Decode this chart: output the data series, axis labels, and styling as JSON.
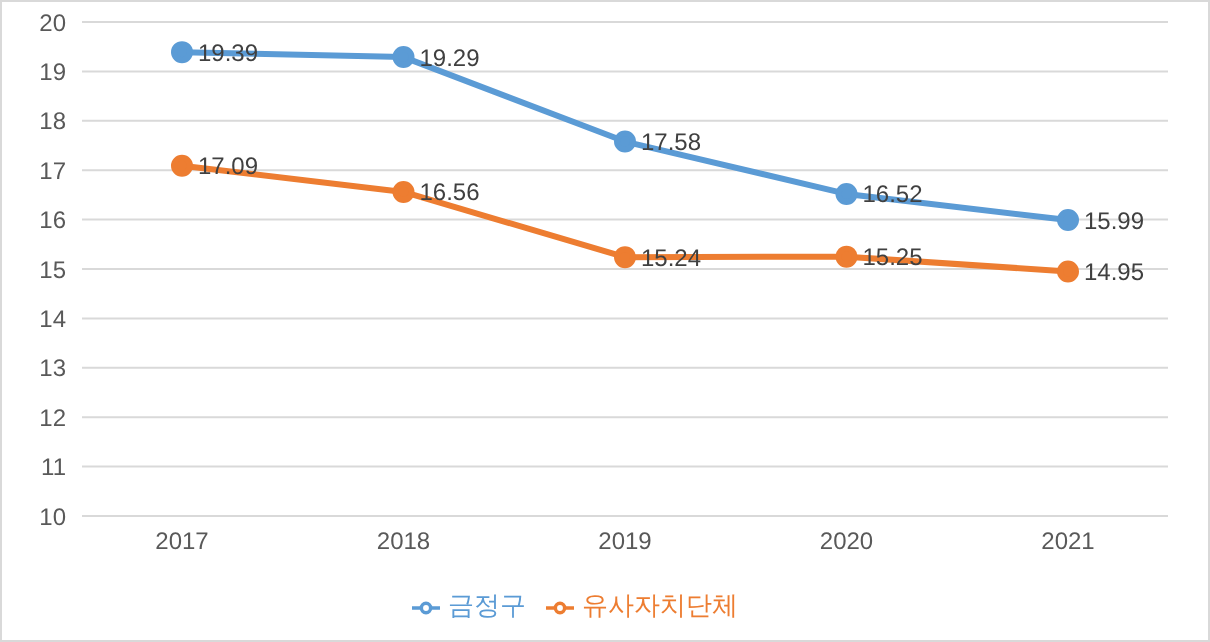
{
  "chart_data": {
    "type": "line",
    "categories": [
      "2017",
      "2018",
      "2019",
      "2020",
      "2021"
    ],
    "series": [
      {
        "name": "금정구",
        "color": "#5b9bd5",
        "values": [
          19.39,
          19.29,
          17.58,
          16.52,
          15.99
        ]
      },
      {
        "name": "유사자치단체",
        "color": "#ed7d31",
        "values": [
          17.09,
          16.56,
          15.24,
          15.25,
          14.95
        ]
      }
    ],
    "ylim": [
      10,
      20
    ],
    "yticks": [
      10,
      11,
      12,
      13,
      14,
      15,
      16,
      17,
      18,
      19,
      20
    ],
    "grid": "y",
    "legend": "bottom",
    "marker": "circle",
    "line_style": "solid",
    "data_labels": true
  }
}
